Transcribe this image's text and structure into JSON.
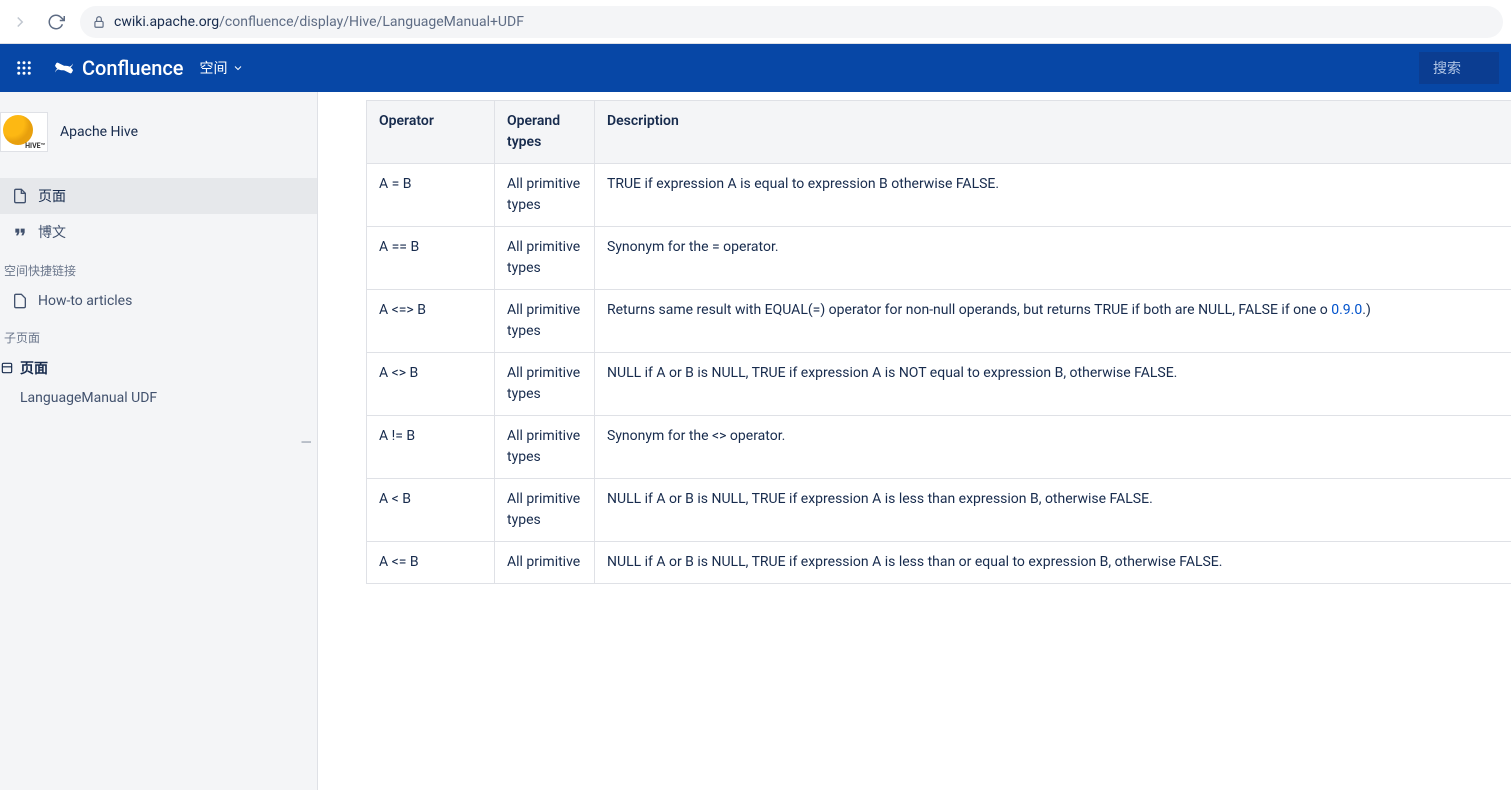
{
  "browser": {
    "url_prefix": "cwiki.apache.org",
    "url_path": "/confluence/display/Hive/LanguageManual+UDF"
  },
  "header": {
    "app_name": "Confluence",
    "nav_spaces": "空间",
    "search_placeholder": "搜索"
  },
  "sidebar": {
    "space_name": "Apache Hive",
    "space_badge": "HIVE™",
    "item_pages": "页面",
    "item_blog": "博文",
    "heading_shortcuts": "空间快捷链接",
    "item_howto": "How-to articles",
    "heading_subpages": "子页面",
    "tree_root": "页面",
    "tree_current": "LanguageManual UDF"
  },
  "table": {
    "columns": [
      "Operator",
      "Operand types",
      "Description"
    ],
    "rows": [
      {
        "op": "A = B",
        "types": "All primitive types",
        "desc": "TRUE if expression A is equal to expression B otherwise FALSE."
      },
      {
        "op": "A == B",
        "types": "All primitive types",
        "desc": "Synonym for the = operator."
      },
      {
        "op": "A <=> B",
        "types": "All primitive types",
        "desc_pre": "Returns same result with EQUAL(=) operator for non-null operands, but returns TRUE if both are NULL, FALSE if one o",
        "link": "0.9.0",
        "desc_post": ".)"
      },
      {
        "op": "A <> B",
        "types": "All primitive types",
        "desc": "NULL if A or B is NULL, TRUE if expression A is NOT equal to expression B, otherwise FALSE."
      },
      {
        "op": "A != B",
        "types": "All primitive types",
        "desc": "Synonym for the <> operator."
      },
      {
        "op": "A < B",
        "types": "All primitive types",
        "desc": "NULL if A or B is NULL, TRUE if expression A is less than expression B, otherwise FALSE."
      },
      {
        "op": "A <= B",
        "types": "All primitive",
        "desc": "NULL if A or B is NULL, TRUE if expression A is less than or equal to expression B, otherwise FALSE."
      }
    ]
  }
}
